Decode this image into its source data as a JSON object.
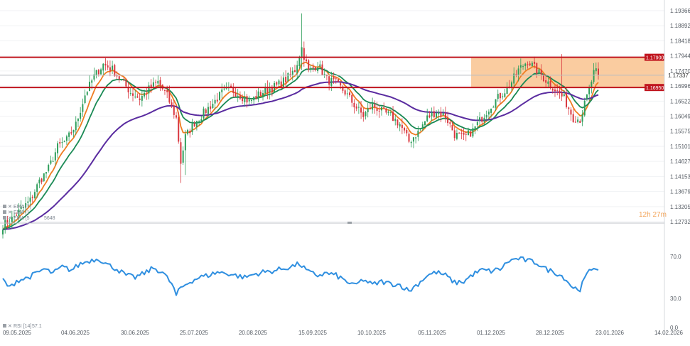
{
  "chart_data": [
    {
      "type": "candlestick",
      "title": "",
      "price_ticks": [
        "1.19366",
        "1.18892",
        "1.18418",
        "1.17944",
        "1.17470",
        "1.16996",
        "1.16522",
        "1.16049",
        "1.15575",
        "1.15101",
        "1.14627",
        "1.14153",
        "1.13679",
        "1.13205",
        "1.12732"
      ],
      "current_price_label": "1.17337",
      "current_price": 1.17337,
      "resistance_level": {
        "label": "1.17900",
        "value": 1.179
      },
      "support_level": {
        "label": "1.16950",
        "value": 1.1695
      },
      "highlight_zone": {
        "from": 1.1695,
        "to": 1.179,
        "color": "#f9c38f"
      },
      "time_remaining": "12h 27m",
      "legend": [
        "EMA [7]",
        "EMA [1",
        "EMA [5"
      ],
      "legend_value_fragment": "5648",
      "ylim": [
        1.127,
        1.196
      ],
      "x_tick_labels": [
        "09.05.2025",
        "04.06.2025",
        "30.06.2025",
        "25.07.2025",
        "20.08.2025",
        "15.09.2025",
        "10.10.2025",
        "05.11.2025",
        "01.12.2025",
        "28.12.2025",
        "23.01.2026",
        "14.02.2026"
      ],
      "close_anchors": [
        [
          0,
          1.1262
        ],
        [
          4,
          1.1282
        ],
        [
          8,
          1.1312
        ],
        [
          12,
          1.134
        ],
        [
          16,
          1.14
        ],
        [
          20,
          1.144
        ],
        [
          24,
          1.1508
        ],
        [
          28,
          1.153
        ],
        [
          32,
          1.1578
        ],
        [
          36,
          1.1672
        ],
        [
          40,
          1.173
        ],
        [
          44,
          1.1768
        ],
        [
          48,
          1.1752
        ],
        [
          52,
          1.1716
        ],
        [
          56,
          1.168
        ],
        [
          60,
          1.166
        ],
        [
          64,
          1.169
        ],
        [
          68,
          1.1712
        ],
        [
          72,
          1.1668
        ],
        [
          76,
          1.1598
        ],
        [
          78,
          1.146
        ],
        [
          80,
          1.154
        ],
        [
          84,
          1.1585
        ],
        [
          88,
          1.1615
        ],
        [
          92,
          1.1645
        ],
        [
          96,
          1.1678
        ],
        [
          100,
          1.1688
        ],
        [
          104,
          1.1672
        ],
        [
          108,
          1.165
        ],
        [
          112,
          1.1672
        ],
        [
          116,
          1.169
        ],
        [
          120,
          1.17
        ],
        [
          124,
          1.172
        ],
        [
          128,
          1.175
        ],
        [
          131,
          1.182
        ],
        [
          134,
          1.1745
        ],
        [
          138,
          1.1768
        ],
        [
          142,
          1.172
        ],
        [
          146,
          1.1708
        ],
        [
          150,
          1.168
        ],
        [
          154,
          1.164
        ],
        [
          158,
          1.1606
        ],
        [
          162,
          1.164
        ],
        [
          166,
          1.162
        ],
        [
          170,
          1.1605
        ],
        [
          174,
          1.158
        ],
        [
          178,
          1.1525
        ],
        [
          182,
          1.1555
        ],
        [
          186,
          1.16
        ],
        [
          190,
          1.162
        ],
        [
          194,
          1.1605
        ],
        [
          198,
          1.1548
        ],
        [
          202,
          1.1535
        ],
        [
          206,
          1.156
        ],
        [
          210,
          1.16
        ],
        [
          214,
          1.164
        ],
        [
          218,
          1.167
        ],
        [
          222,
          1.17
        ],
        [
          226,
          1.175
        ],
        [
          230,
          1.178
        ],
        [
          234,
          1.1748
        ],
        [
          238,
          1.1718
        ],
        [
          242,
          1.169
        ],
        [
          246,
          1.166
        ],
        [
          250,
          1.16
        ],
        [
          253,
          1.1595
        ],
        [
          256,
          1.1665
        ],
        [
          259,
          1.174
        ],
        [
          261,
          1.1745
        ]
      ],
      "ema_periods": [
        7,
        14,
        50
      ],
      "ema_colors": [
        "#ef7d22",
        "#1a8a55",
        "#5a2ca0"
      ],
      "up_color": "#2e9e5b",
      "down_color": "#d9363e"
    },
    {
      "type": "line",
      "indicator": "RSI",
      "legend": "RSI [14]",
      "legend_value": "57.1",
      "ticks": [
        "70.0",
        "30.0",
        "0.0"
      ],
      "ylim": [
        0,
        100
      ],
      "line_color": "#2f8fe0",
      "value_anchors": [
        [
          0,
          48
        ],
        [
          3,
          40
        ],
        [
          6,
          47
        ],
        [
          10,
          49
        ],
        [
          14,
          53
        ],
        [
          18,
          58
        ],
        [
          22,
          54
        ],
        [
          26,
          60
        ],
        [
          30,
          57
        ],
        [
          34,
          63
        ],
        [
          38,
          66
        ],
        [
          42,
          68
        ],
        [
          46,
          62
        ],
        [
          50,
          58
        ],
        [
          54,
          52
        ],
        [
          58,
          50
        ],
        [
          62,
          54
        ],
        [
          66,
          59
        ],
        [
          70,
          55
        ],
        [
          74,
          44
        ],
        [
          76,
          33
        ],
        [
          78,
          40
        ],
        [
          82,
          46
        ],
        [
          86,
          50
        ],
        [
          90,
          52
        ],
        [
          94,
          55
        ],
        [
          98,
          54
        ],
        [
          102,
          52
        ],
        [
          106,
          50
        ],
        [
          110,
          53
        ],
        [
          114,
          55
        ],
        [
          118,
          56
        ],
        [
          122,
          58
        ],
        [
          126,
          60
        ],
        [
          130,
          63
        ],
        [
          134,
          55
        ],
        [
          138,
          52
        ],
        [
          142,
          54
        ],
        [
          146,
          52
        ],
        [
          150,
          47
        ],
        [
          154,
          42
        ],
        [
          158,
          48
        ],
        [
          162,
          43
        ],
        [
          166,
          46
        ],
        [
          170,
          44
        ],
        [
          174,
          43
        ],
        [
          178,
          37
        ],
        [
          182,
          44
        ],
        [
          186,
          52
        ],
        [
          190,
          55
        ],
        [
          194,
          52
        ],
        [
          198,
          45
        ],
        [
          202,
          46
        ],
        [
          206,
          53
        ],
        [
          210,
          57
        ],
        [
          214,
          56
        ],
        [
          218,
          58
        ],
        [
          222,
          66
        ],
        [
          226,
          68
        ],
        [
          230,
          66
        ],
        [
          234,
          64
        ],
        [
          238,
          58
        ],
        [
          242,
          55
        ],
        [
          246,
          50
        ],
        [
          250,
          40
        ],
        [
          253,
          39
        ],
        [
          256,
          53
        ],
        [
          259,
          60
        ],
        [
          261,
          57
        ]
      ]
    }
  ]
}
